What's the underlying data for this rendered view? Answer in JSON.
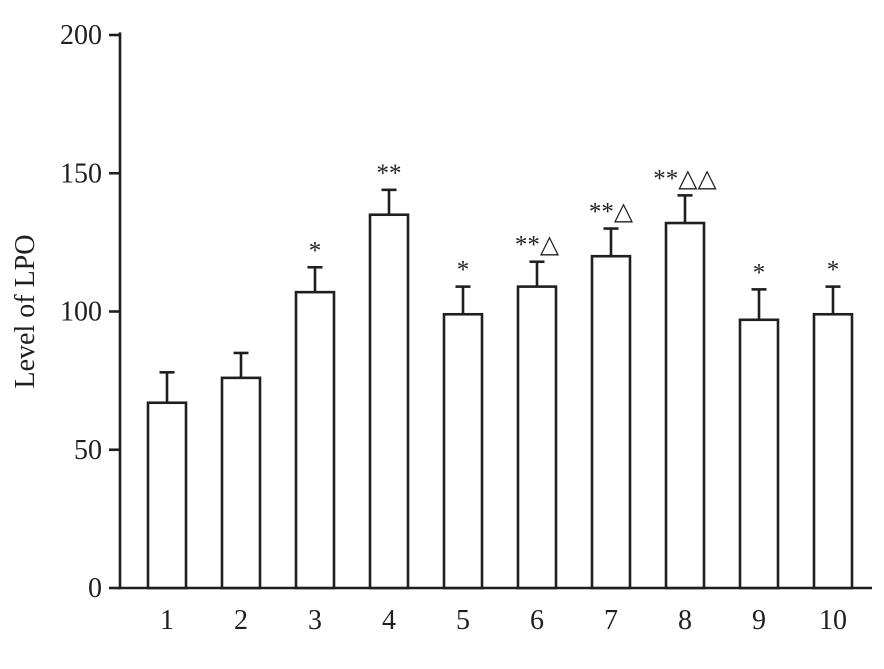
{
  "chart_data": {
    "type": "bar",
    "title": "",
    "categories": [
      "1",
      "2",
      "3",
      "4",
      "5",
      "6",
      "7",
      "8",
      "9",
      "10"
    ],
    "values": [
      67,
      76,
      107,
      135,
      99,
      109,
      120,
      132,
      97,
      99
    ],
    "errors": [
      11,
      9,
      9,
      9,
      10,
      9,
      10,
      10,
      11,
      10
    ],
    "annotations": [
      "",
      "",
      "*",
      "**",
      "*",
      "**△",
      "**△",
      "**△△",
      "*",
      "*"
    ],
    "xlabel": "",
    "ylabel": "Level of LPO",
    "ylim": [
      0,
      200
    ],
    "yticks": [
      0,
      50,
      100,
      150,
      200
    ],
    "grid": false,
    "legend": null,
    "bar_color": "#ffffff",
    "axis_color": "#1f1f1f",
    "background": "#ffffff"
  }
}
